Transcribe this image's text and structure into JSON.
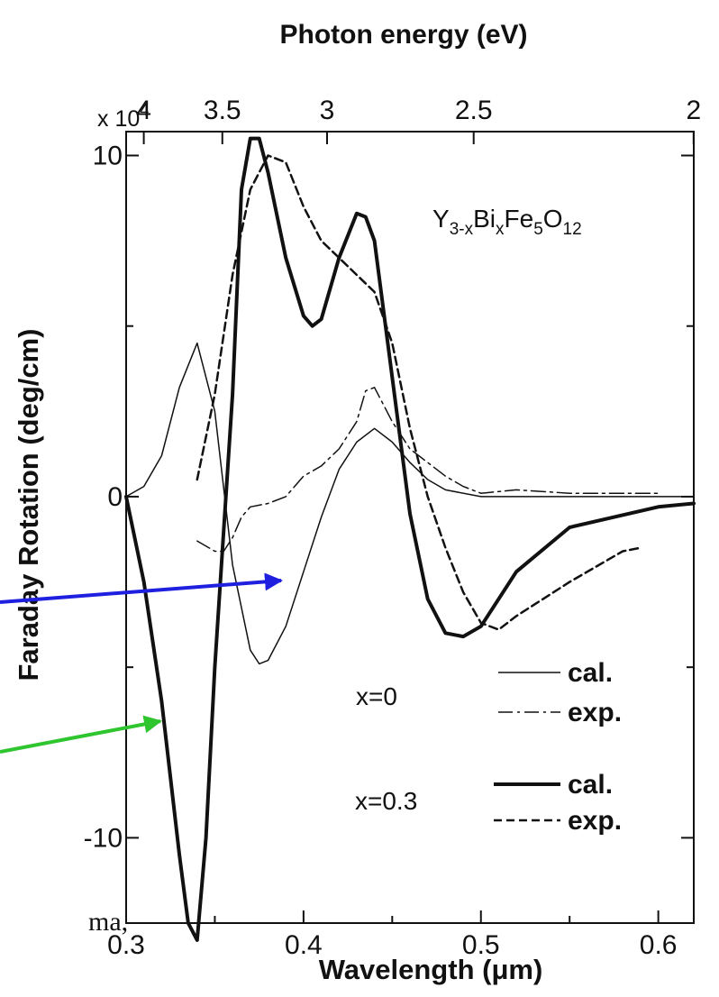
{
  "chart_data": {
    "type": "line",
    "xlabel": "Wavelength (μm)",
    "x2label": "Photon energy (eV)",
    "ylabel": "Faraday Rotation (deg/cm)",
    "y_multiplier": "x 10",
    "y_multiplier_exp": "4",
    "xlim": [
      0.3,
      0.62
    ],
    "ylim": [
      -12.5,
      10.7
    ],
    "x_ticks": [
      "0.3",
      "0.4",
      "0.5",
      "0.6"
    ],
    "x_tick_values": [
      0.3,
      0.4,
      0.5,
      0.6
    ],
    "y_ticks": [
      "10",
      "0",
      "-10"
    ],
    "y_tick_values": [
      10,
      0,
      -10
    ],
    "top_ticks": [
      "4",
      "3.5",
      "3",
      "2.5",
      "2"
    ],
    "top_tick_values": [
      4,
      3.5,
      3,
      2.5,
      2
    ],
    "annotation_formula": {
      "p1": "Y",
      "s1": "3-x",
      "p2": "Bi",
      "s2": "x",
      "p3": "Fe",
      "s3": "5",
      "p4": "O",
      "s4": "12"
    },
    "legend": {
      "group1": "x=0",
      "group2": "x=0.3",
      "cal": "cal.",
      "exp": "exp."
    },
    "cut_text": "ma,",
    "series": [
      {
        "name": "x=0 cal.",
        "style": "thin-solid",
        "x": [
          0.3,
          0.31,
          0.32,
          0.33,
          0.34,
          0.35,
          0.36,
          0.37,
          0.375,
          0.38,
          0.39,
          0.4,
          0.41,
          0.42,
          0.43,
          0.44,
          0.45,
          0.46,
          0.47,
          0.48,
          0.5,
          0.55,
          0.6,
          0.62
        ],
        "y": [
          0,
          0.3,
          1.2,
          3.2,
          4.5,
          2.5,
          -2.0,
          -4.5,
          -4.9,
          -4.8,
          -3.8,
          -2.2,
          -0.6,
          0.8,
          1.6,
          2.0,
          1.6,
          1.0,
          0.5,
          0.2,
          0.0,
          0.0,
          0.0,
          0.0
        ]
      },
      {
        "name": "x=0 exp.",
        "style": "dash-dot",
        "x": [
          0.34,
          0.35,
          0.355,
          0.36,
          0.365,
          0.37,
          0.38,
          0.39,
          0.4,
          0.41,
          0.42,
          0.43,
          0.435,
          0.44,
          0.45,
          0.46,
          0.47,
          0.48,
          0.49,
          0.5,
          0.52,
          0.55,
          0.6
        ],
        "y": [
          -1.3,
          -1.6,
          -1.6,
          -1.2,
          -0.6,
          -0.3,
          -0.2,
          0.0,
          0.6,
          0.9,
          1.4,
          2.2,
          3.1,
          3.2,
          2.2,
          1.4,
          1.0,
          0.6,
          0.3,
          0.1,
          0.2,
          0.1,
          0.1
        ]
      },
      {
        "name": "x=0.3 cal.",
        "style": "thick-solid",
        "x": [
          0.3,
          0.31,
          0.32,
          0.33,
          0.335,
          0.34,
          0.345,
          0.35,
          0.36,
          0.365,
          0.37,
          0.375,
          0.38,
          0.39,
          0.4,
          0.405,
          0.41,
          0.42,
          0.43,
          0.435,
          0.44,
          0.45,
          0.46,
          0.47,
          0.48,
          0.49,
          0.5,
          0.52,
          0.55,
          0.6,
          0.62
        ],
        "y": [
          0,
          -2.5,
          -6.0,
          -10.5,
          -12.5,
          -13.0,
          -10.0,
          -5.0,
          3.0,
          9.0,
          10.5,
          10.5,
          9.5,
          7.0,
          5.3,
          5.0,
          5.2,
          7.0,
          8.3,
          8.2,
          7.5,
          3.5,
          -0.5,
          -3.0,
          -4.0,
          -4.1,
          -3.8,
          -2.2,
          -0.9,
          -0.3,
          -0.2
        ]
      },
      {
        "name": "x=0.3 exp.",
        "style": "dashed",
        "x": [
          0.34,
          0.35,
          0.36,
          0.37,
          0.38,
          0.39,
          0.4,
          0.41,
          0.42,
          0.43,
          0.44,
          0.45,
          0.46,
          0.47,
          0.48,
          0.49,
          0.5,
          0.51,
          0.52,
          0.55,
          0.58,
          0.59
        ],
        "y": [
          0.5,
          3.0,
          6.5,
          9.0,
          10.0,
          9.8,
          8.5,
          7.5,
          7.0,
          6.5,
          6.0,
          4.5,
          2.0,
          0.0,
          -1.5,
          -2.8,
          -3.7,
          -3.9,
          -3.5,
          -2.5,
          -1.6,
          -1.5
        ]
      }
    ]
  }
}
